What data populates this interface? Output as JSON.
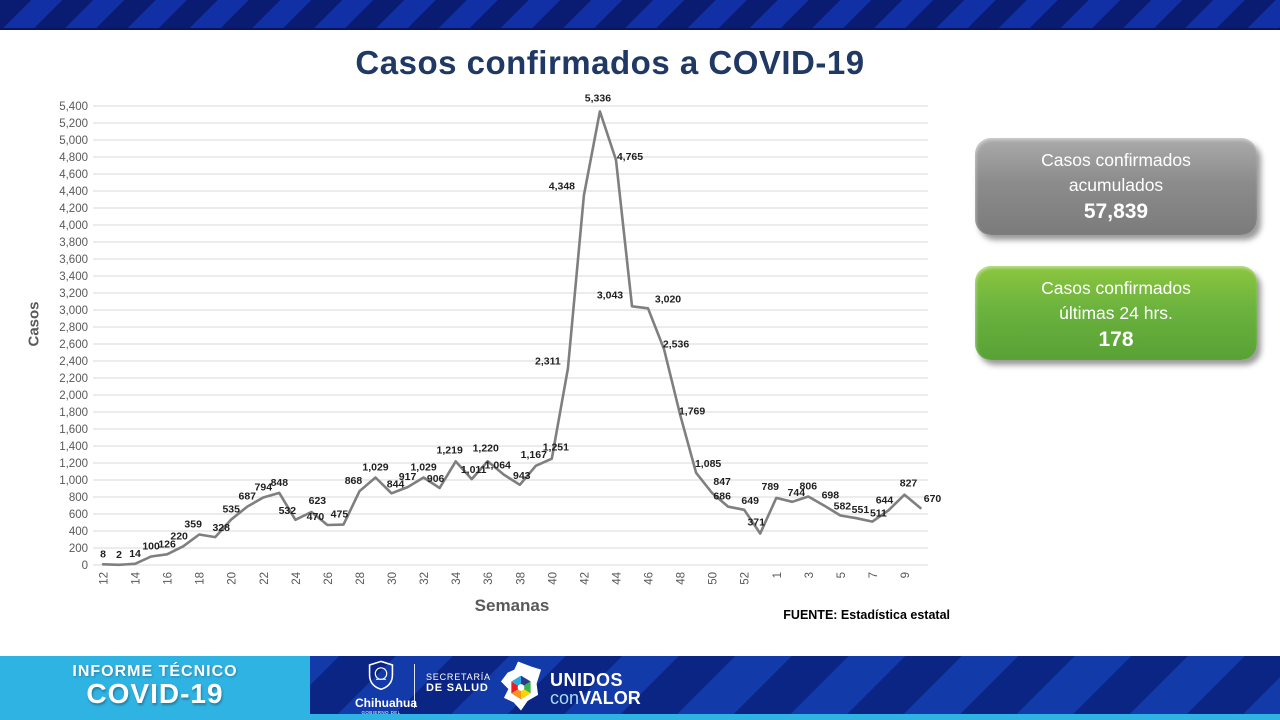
{
  "title": "Casos confirmados a COVID-19",
  "chart_data": {
    "type": "line",
    "title": "Casos confirmados a COVID-19",
    "xlabel": "Semanas",
    "ylabel": "Casos",
    "ylim": [
      0,
      5400
    ],
    "ytick_step": 200,
    "grid": true,
    "legend": "none",
    "line_color": "#7F7F7F",
    "weeks": [
      12,
      13,
      14,
      15,
      16,
      17,
      18,
      19,
      20,
      21,
      22,
      23,
      24,
      25,
      26,
      27,
      28,
      29,
      30,
      31,
      32,
      33,
      34,
      35,
      36,
      37,
      38,
      39,
      40,
      41,
      42,
      43,
      44,
      45,
      46,
      47,
      48,
      49,
      50,
      51,
      52,
      53,
      1,
      2,
      3,
      4,
      5,
      6,
      7,
      8,
      9,
      10
    ],
    "values": [
      8,
      2,
      14,
      100,
      126,
      220,
      359,
      328,
      535,
      687,
      794,
      848,
      532,
      623,
      470,
      475,
      868,
      1029,
      844,
      917,
      1029,
      906,
      1219,
      1011,
      1220,
      1064,
      943,
      1167,
      1251,
      2311,
      4348,
      5336,
      4765,
      3043,
      3020,
      2536,
      1769,
      1085,
      847,
      686,
      649,
      371,
      789,
      744,
      806,
      698,
      582,
      551,
      511,
      644,
      827,
      670
    ],
    "source": "FUENTE: Estadística estatal"
  },
  "cards": {
    "accumulated": {
      "line1": "Casos confirmados",
      "line2": "acumulados",
      "value": "57,839",
      "color": "#8C8C8C"
    },
    "last24": {
      "line1": "Casos confirmados",
      "line2": "últimas 24 hrs.",
      "value": "178",
      "color": "#6CB33E"
    }
  },
  "footer": {
    "program_line1": "INFORME TÉCNICO",
    "program_line2": "COVID-19",
    "government": {
      "name": "Chihuahua",
      "subtitle": "GOBIERNO DEL ESTADO"
    },
    "ministry_line1": "SECRETARÍA",
    "ministry_line2": "DE SALUD",
    "brand": {
      "word1": "UNIDOS",
      "word2a": "con",
      "word2b": "VALOR"
    }
  },
  "colors": {
    "banner_dark": "#0A1C72",
    "banner_bright": "#1230A6",
    "title_navy": "#1F3864",
    "footer_cyan": "#2FB3E3",
    "card_gray": "#8C8C8C",
    "card_green": "#6CB33E"
  }
}
